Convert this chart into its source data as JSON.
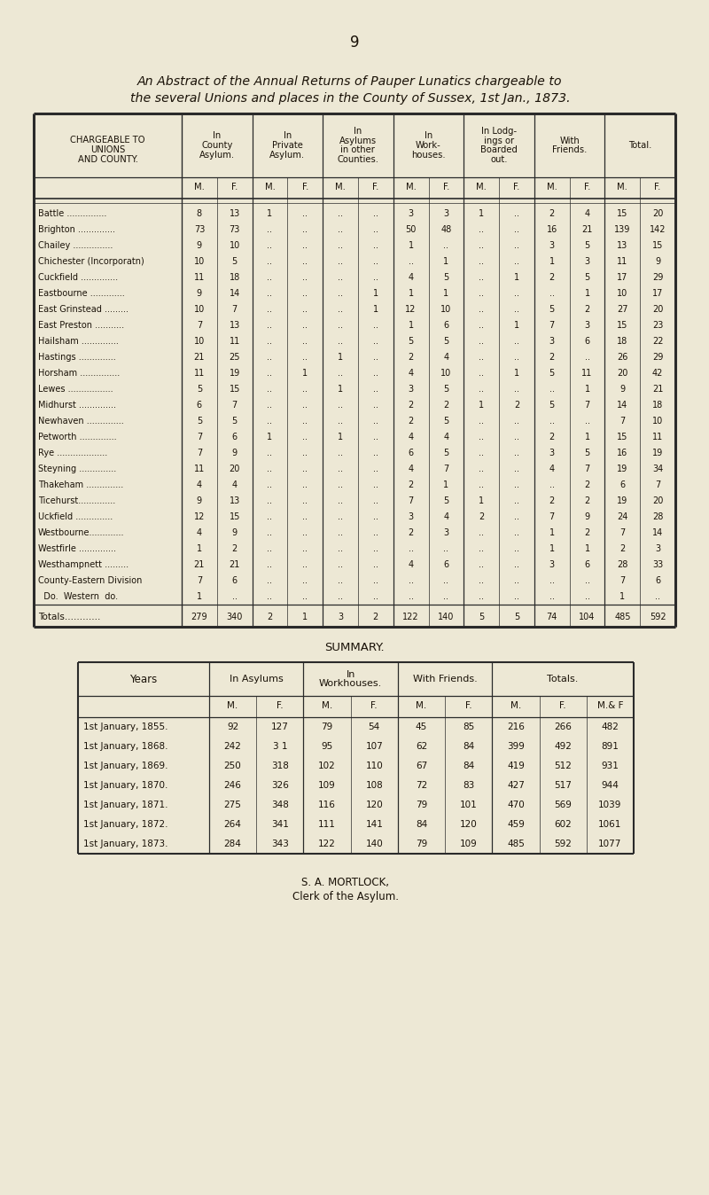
{
  "page_number": "9",
  "title_line1": "An Abstract of the Annual Returns of Pauper Lunatics chargeable to",
  "title_line2": "the several Unions and places in the County of Sussex, 1st Jan., 1873.",
  "bg_color": "#ede8d5",
  "table1": {
    "col_header_groups": [
      {
        "label": "In\nCounty\nAsylum.",
        "cols": 2
      },
      {
        "label": "In\nPrivate\nAsylum.",
        "cols": 2
      },
      {
        "label": "In\nAsylums\nin other\nCounties.",
        "cols": 2
      },
      {
        "label": "In\nWork-\nhouses.",
        "cols": 2
      },
      {
        "label": "In Lodg-\nings or\nBoarded\nout.",
        "cols": 2
      },
      {
        "label": "With\nFriends.",
        "cols": 2
      },
      {
        "label": "Total.",
        "cols": 2
      }
    ],
    "row_header": "CHARGEABLE TO\nUNIONS\nAND COUNTY.",
    "mf_headers": [
      "M.",
      "F.",
      "M.",
      "F.",
      "M.",
      "F.",
      "M.",
      "F.",
      "M.",
      "F.",
      "M.",
      "F.",
      "M.",
      "F."
    ],
    "rows": [
      {
        "name": "Battle ...............",
        "vals": [
          "8",
          "13",
          "1",
          "..",
          "..",
          "..",
          "3",
          "3",
          "1",
          "..",
          "2",
          "4",
          "15",
          "20"
        ]
      },
      {
        "name": "Brighton ..............",
        "vals": [
          "73",
          "73",
          "..",
          "..",
          "..",
          "..",
          "50",
          "48",
          "..",
          "..",
          "16",
          "21",
          "139",
          "142"
        ]
      },
      {
        "name": "Chailey ...............",
        "vals": [
          "9",
          "10",
          "..",
          "..",
          "..",
          "..",
          "1",
          "..",
          "..",
          "..",
          "3",
          "5",
          "13",
          "15"
        ]
      },
      {
        "name": "Chichester (Incorporatn)",
        "vals": [
          "10",
          "5",
          "..",
          "..",
          "..",
          "..",
          "..",
          "1",
          "..",
          "..",
          "1",
          "3",
          "11",
          "9"
        ]
      },
      {
        "name": "Cuckfield ..............",
        "vals": [
          "11",
          "18",
          "..",
          "..",
          "..",
          "..",
          "4",
          "5",
          "..",
          "1",
          "2",
          "5",
          "17",
          "29"
        ]
      },
      {
        "name": "Eastbourne .............",
        "vals": [
          "9",
          "14",
          "..",
          "..",
          "..",
          "1",
          "1",
          "1",
          "..",
          "..",
          "..",
          "1",
          "10",
          "17"
        ]
      },
      {
        "name": "East Grinstead .........",
        "vals": [
          "10",
          "7",
          "..",
          "..",
          "..",
          "1",
          "12",
          "10",
          "..",
          "..",
          "5",
          "2",
          "27",
          "20"
        ]
      },
      {
        "name": "East Preston ...........",
        "vals": [
          "7",
          "13",
          "..",
          "..",
          "..",
          "..",
          "1",
          "6",
          "..",
          "1",
          "7",
          "3",
          "15",
          "23"
        ]
      },
      {
        "name": "Hailsham ..............",
        "vals": [
          "10",
          "11",
          "..",
          "..",
          "..",
          "..",
          "5",
          "5",
          "..",
          "..",
          "3",
          "6",
          "18",
          "22"
        ]
      },
      {
        "name": "Hastings ..............",
        "vals": [
          "21",
          "25",
          "..",
          "..",
          "1",
          "..",
          "2",
          "4",
          "..",
          "..",
          "2",
          "..",
          "26",
          "29"
        ]
      },
      {
        "name": "Horsham ...............",
        "vals": [
          "11",
          "19",
          "..",
          "1",
          "..",
          "..",
          "4",
          "10",
          "..",
          "1",
          "5",
          "11",
          "20",
          "42"
        ]
      },
      {
        "name": "Lewes .................",
        "vals": [
          "5",
          "15",
          "..",
          "..",
          "1",
          "..",
          "3",
          "5",
          "..",
          "..",
          "..",
          "1",
          "9",
          "21"
        ]
      },
      {
        "name": "Midhurst ..............",
        "vals": [
          "6",
          "7",
          "..",
          "..",
          "..",
          "..",
          "2",
          "2",
          "1",
          "2",
          "5",
          "7",
          "14",
          "18"
        ]
      },
      {
        "name": "Newhaven ..............",
        "vals": [
          "5",
          "5",
          "..",
          "..",
          "..",
          "..",
          "2",
          "5",
          "..",
          "..",
          "..",
          "..",
          "7",
          "10"
        ]
      },
      {
        "name": "Petworth ..............",
        "vals": [
          "7",
          "6",
          "1",
          "..",
          "1",
          "..",
          "4",
          "4",
          "..",
          "..",
          "2",
          "1",
          "15",
          "11"
        ]
      },
      {
        "name": "Rye ...................",
        "vals": [
          "7",
          "9",
          "..",
          "..",
          "..",
          "..",
          "6",
          "5",
          "..",
          "..",
          "3",
          "5",
          "16",
          "19"
        ]
      },
      {
        "name": "Steyning ..............",
        "vals": [
          "11",
          "20",
          "..",
          "..",
          "..",
          "..",
          "4",
          "7",
          "..",
          "..",
          "4",
          "7",
          "19",
          "34"
        ]
      },
      {
        "name": "Thakeham ..............",
        "vals": [
          "4",
          "4",
          "..",
          "..",
          "..",
          "..",
          "2",
          "1",
          "..",
          "..",
          "..",
          "2",
          "6",
          "7"
        ]
      },
      {
        "name": "Ticehurst..............",
        "vals": [
          "9",
          "13",
          "..",
          "..",
          "..",
          "..",
          "7",
          "5",
          "1",
          "..",
          "2",
          "2",
          "19",
          "20"
        ]
      },
      {
        "name": "Uckfield ..............",
        "vals": [
          "12",
          "15",
          "..",
          "..",
          "..",
          "..",
          "3",
          "4",
          "2",
          "..",
          "7",
          "9",
          "24",
          "28"
        ]
      },
      {
        "name": "Westbourne.............",
        "vals": [
          "4",
          "9",
          "..",
          "..",
          "..",
          "..",
          "2",
          "3",
          "..",
          "..",
          "1",
          "2",
          "7",
          "14"
        ]
      },
      {
        "name": "Westfirle ..............",
        "vals": [
          "1",
          "2",
          "..",
          "..",
          "..",
          "..",
          "..",
          "..",
          "..",
          "..",
          "1",
          "1",
          "2",
          "3"
        ]
      },
      {
        "name": "Westhampnett .........",
        "vals": [
          "21",
          "21",
          "..",
          "..",
          "..",
          "..",
          "4",
          "6",
          "..",
          "..",
          "3",
          "6",
          "28",
          "33"
        ]
      },
      {
        "name": "County-Eastern Division",
        "vals": [
          "7",
          "6",
          "..",
          "..",
          "..",
          "..",
          "..",
          "..",
          "..",
          "..",
          "..",
          "..",
          "7",
          "6"
        ]
      },
      {
        "name": "  Do.  Western  do.",
        "vals": [
          "1",
          "..",
          "..",
          "..",
          "..",
          "..",
          "..",
          "..",
          "..",
          "..",
          "..",
          "..",
          "1",
          ".."
        ]
      },
      {
        "name": "Totals............",
        "vals": [
          "279",
          "340",
          "2",
          "1",
          "3",
          "2",
          "122",
          "140",
          "5",
          "5",
          "74",
          "104",
          "485",
          "592"
        ],
        "is_total": true
      }
    ]
  },
  "table2": {
    "title": "SUMMARY.",
    "col_headers": [
      "Years",
      "In Asylums",
      "In\nWorkhouses.",
      "With Friends.",
      "Totals."
    ],
    "mf_headers": [
      "M.",
      "F.",
      "M.",
      "F.",
      "M.",
      "F.",
      "M.",
      "F.",
      "M.& F"
    ],
    "rows": [
      {
        "year": "1st January, 1855.",
        "vals": [
          "92",
          "127",
          "79",
          "54",
          "45",
          "85",
          "216",
          "266",
          "482"
        ]
      },
      {
        "year": "1st January, 1868.",
        "vals": [
          "242",
          "3 1",
          "95",
          "107",
          "62",
          "84",
          "399",
          "492",
          "891"
        ]
      },
      {
        "year": "1st January, 1869.",
        "vals": [
          "250",
          "318",
          "102",
          "110",
          "67",
          "84",
          "419",
          "512",
          "931"
        ]
      },
      {
        "year": "1st January, 1870.",
        "vals": [
          "246",
          "326",
          "109",
          "108",
          "72",
          "83",
          "427",
          "517",
          "944"
        ]
      },
      {
        "year": "1st January, 1871.",
        "vals": [
          "275",
          "348",
          "116",
          "120",
          "79",
          "101",
          "470",
          "569",
          "1039"
        ]
      },
      {
        "year": "1st January, 1872.",
        "vals": [
          "264",
          "341",
          "111",
          "141",
          "84",
          "120",
          "459",
          "602",
          "1061"
        ]
      },
      {
        "year": "1st January, 1873.",
        "vals": [
          "284",
          "343",
          "122",
          "140",
          "79",
          "109",
          "485",
          "592",
          "1077"
        ]
      }
    ]
  },
  "footer": "S. A. MORTLOCK,",
  "footer2": "Clerk of the Asylum."
}
